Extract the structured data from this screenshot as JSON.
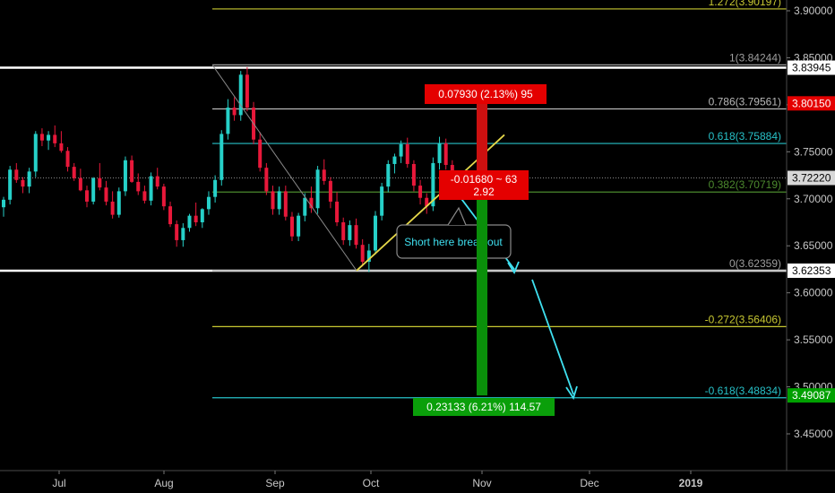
{
  "chart_data": {
    "type": "candlestick",
    "title": "",
    "xlabel": "",
    "ylabel": "",
    "ylim": [
      3.4,
      3.91
    ],
    "x_ticks": [
      "Jul",
      "Aug",
      "Sep",
      "Oct",
      "Nov",
      "Dec",
      "2019"
    ],
    "y_ticks": [
      "3.90000",
      "3.85000",
      "3.80000",
      "3.75000",
      "3.70000",
      "3.65000",
      "3.60000",
      "3.55000",
      "3.50000",
      "3.45000"
    ],
    "fib_levels": [
      {
        "label": "1.272(3.90197)",
        "value": 3.90197,
        "color": "#c8c832"
      },
      {
        "label": "1(3.84244)",
        "value": 3.84244,
        "color": "#9e9e9e"
      },
      {
        "label": "0.786(3.79561)",
        "value": 3.79561,
        "color": "#b8b8b8"
      },
      {
        "label": "0.618(3.75884)",
        "value": 3.75884,
        "color": "#27c1c8"
      },
      {
        "label": "0.382(3.70719)",
        "value": 3.70719,
        "color": "#4c8a2e"
      },
      {
        "label": "0(3.62359)",
        "value": 3.62359,
        "color": "#9e9e9e"
      },
      {
        "label": "-0.272(3.56406)",
        "value": 3.56406,
        "color": "#c8c832"
      },
      {
        "label": "-0.618(3.48834)",
        "value": 3.48834,
        "color": "#27c1c8"
      }
    ],
    "price_badges": [
      {
        "label": "3.83945",
        "value": 3.83945,
        "bg": "#ffffff",
        "fg": "#000000"
      },
      {
        "label": "3.80150",
        "value": 3.8015,
        "bg": "#e40000",
        "fg": "#ffffff"
      },
      {
        "label": "3.72220",
        "value": 3.7222,
        "bg": "#d8d8d8",
        "fg": "#000000"
      },
      {
        "label": "3.62353",
        "value": 3.62353,
        "bg": "#ffffff",
        "fg": "#000000"
      },
      {
        "label": "3.49087",
        "value": 3.49087,
        "bg": "#00a000",
        "fg": "#ffffff"
      }
    ],
    "range_boxes": {
      "upper": 3.83945,
      "lower": 3.62353
    },
    "position": {
      "entry": 3.7222,
      "stop": 3.8015,
      "target": 3.49087
    },
    "labels": {
      "risk": "0.07930 (2.13%) 95",
      "entry": "-0.01680 ~ 63",
      "ratio": "2.92",
      "reward": "0.23133 (6.21%) 114.57",
      "note": "Short here break out"
    },
    "candles": [
      [
        3.691,
        3.702,
        3.681,
        3.699
      ],
      [
        3.699,
        3.735,
        3.694,
        3.731
      ],
      [
        3.731,
        3.738,
        3.717,
        3.72
      ],
      [
        3.72,
        3.723,
        3.706,
        3.713
      ],
      [
        3.713,
        3.733,
        3.706,
        3.729
      ],
      [
        3.729,
        3.772,
        3.723,
        3.769
      ],
      [
        3.769,
        3.775,
        3.756,
        3.762
      ],
      [
        3.762,
        3.772,
        3.752,
        3.768
      ],
      [
        3.768,
        3.778,
        3.755,
        3.759
      ],
      [
        3.759,
        3.772,
        3.749,
        3.751
      ],
      [
        3.751,
        3.755,
        3.729,
        3.734
      ],
      [
        3.734,
        3.738,
        3.719,
        3.722
      ],
      [
        3.722,
        3.732,
        3.708,
        3.709
      ],
      [
        3.709,
        3.714,
        3.691,
        3.697
      ],
      [
        3.697,
        3.723,
        3.694,
        3.722
      ],
      [
        3.722,
        3.738,
        3.709,
        3.712
      ],
      [
        3.712,
        3.719,
        3.693,
        3.697
      ],
      [
        3.697,
        3.708,
        3.679,
        3.683
      ],
      [
        3.683,
        3.712,
        3.68,
        3.708
      ],
      [
        3.708,
        3.745,
        3.703,
        3.741
      ],
      [
        3.741,
        3.746,
        3.717,
        3.718
      ],
      [
        3.718,
        3.727,
        3.704,
        3.708
      ],
      [
        3.708,
        3.714,
        3.695,
        3.698
      ],
      [
        3.698,
        3.728,
        3.693,
        3.724
      ],
      [
        3.724,
        3.733,
        3.71,
        3.713
      ],
      [
        3.713,
        3.716,
        3.688,
        3.692
      ],
      [
        3.692,
        3.697,
        3.67,
        3.673
      ],
      [
        3.673,
        3.677,
        3.649,
        3.656
      ],
      [
        3.656,
        3.674,
        3.649,
        3.669
      ],
      [
        3.669,
        3.684,
        3.665,
        3.682
      ],
      [
        3.682,
        3.696,
        3.671,
        3.675
      ],
      [
        3.675,
        3.69,
        3.669,
        3.689
      ],
      [
        3.689,
        3.708,
        3.683,
        3.702
      ],
      [
        3.702,
        3.725,
        3.696,
        3.72
      ],
      [
        3.72,
        3.773,
        3.714,
        3.769
      ],
      [
        3.769,
        3.806,
        3.763,
        3.797
      ],
      [
        3.797,
        3.808,
        3.783,
        3.789
      ],
      [
        3.789,
        3.836,
        3.783,
        3.832
      ],
      [
        3.832,
        3.84,
        3.793,
        3.797
      ],
      [
        3.797,
        3.803,
        3.758,
        3.763
      ],
      [
        3.763,
        3.771,
        3.729,
        3.733
      ],
      [
        3.733,
        3.738,
        3.704,
        3.708
      ],
      [
        3.708,
        3.714,
        3.683,
        3.689
      ],
      [
        3.689,
        3.713,
        3.683,
        3.708
      ],
      [
        3.708,
        3.714,
        3.677,
        3.681
      ],
      [
        3.681,
        3.686,
        3.655,
        3.66
      ],
      [
        3.66,
        3.685,
        3.655,
        3.682
      ],
      [
        3.682,
        3.706,
        3.676,
        3.701
      ],
      [
        3.701,
        3.713,
        3.685,
        3.69
      ],
      [
        3.69,
        3.735,
        3.684,
        3.731
      ],
      [
        3.731,
        3.742,
        3.715,
        3.719
      ],
      [
        3.719,
        3.723,
        3.69,
        3.697
      ],
      [
        3.697,
        3.707,
        3.671,
        3.675
      ],
      [
        3.675,
        3.68,
        3.651,
        3.656
      ],
      [
        3.656,
        3.677,
        3.65,
        3.672
      ],
      [
        3.672,
        3.679,
        3.647,
        3.651
      ],
      [
        3.651,
        3.657,
        3.628,
        3.633
      ],
      [
        3.633,
        3.652,
        3.622,
        3.645
      ],
      [
        3.645,
        3.687,
        3.641,
        3.682
      ],
      [
        3.682,
        3.717,
        3.677,
        3.713
      ],
      [
        3.713,
        3.741,
        3.707,
        3.737
      ],
      [
        3.737,
        3.748,
        3.727,
        3.745
      ],
      [
        3.745,
        3.762,
        3.738,
        3.758
      ],
      [
        3.758,
        3.765,
        3.733,
        3.737
      ],
      [
        3.737,
        3.741,
        3.708,
        3.714
      ],
      [
        3.714,
        3.72,
        3.694,
        3.701
      ],
      [
        3.701,
        3.706,
        3.684,
        3.692
      ],
      [
        3.692,
        3.744,
        3.687,
        3.738
      ],
      [
        3.738,
        3.766,
        3.731,
        3.759
      ],
      [
        3.759,
        3.764,
        3.731,
        3.736
      ],
      [
        3.736,
        3.741,
        3.71,
        3.72
      ],
      [
        3.72,
        3.726,
        3.712,
        3.722
      ]
    ]
  }
}
